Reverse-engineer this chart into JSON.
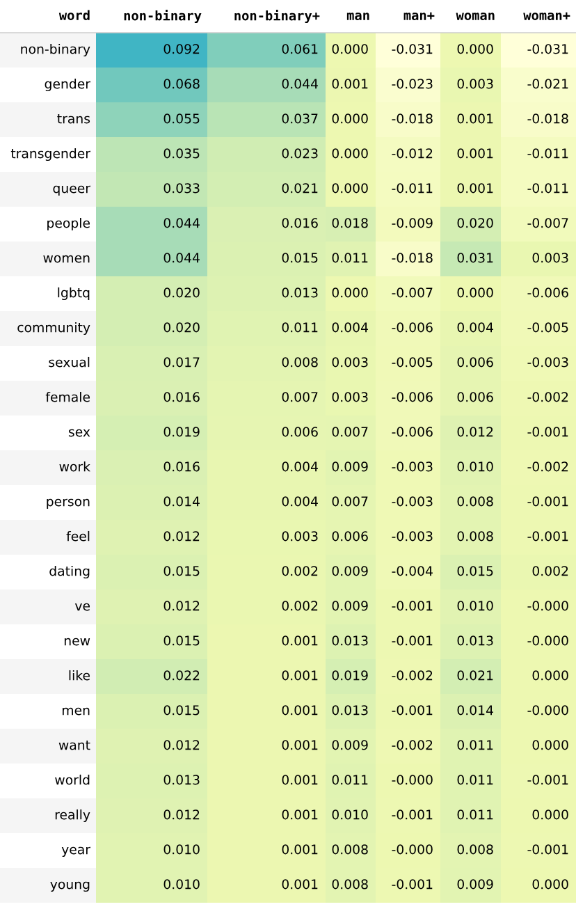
{
  "chart_data": {
    "type": "heatmap",
    "ylabel": "word",
    "categories": [
      "non-binary",
      "non-binary+",
      "man",
      "man+",
      "woman",
      "woman+"
    ],
    "y_categories": [
      "non-binary",
      "gender",
      "trans",
      "transgender",
      "queer",
      "people",
      "women",
      "lgbtq",
      "community",
      "sexual",
      "female",
      "sex",
      "work",
      "person",
      "feel",
      "dating",
      "ve",
      "new",
      "like",
      "men",
      "want",
      "world",
      "really",
      "year",
      "young"
    ],
    "cells": [
      [
        0.092,
        0.061,
        0.0,
        -0.031,
        0.0,
        -0.031
      ],
      [
        0.068,
        0.044,
        0.001,
        -0.023,
        0.003,
        -0.021
      ],
      [
        0.055,
        0.037,
        0.0,
        -0.018,
        0.001,
        -0.018
      ],
      [
        0.035,
        0.023,
        0.0,
        -0.012,
        0.001,
        -0.011
      ],
      [
        0.033,
        0.021,
        0.0,
        -0.011,
        0.001,
        -0.011
      ],
      [
        0.044,
        0.016,
        0.018,
        -0.009,
        0.02,
        -0.007
      ],
      [
        0.044,
        0.015,
        0.011,
        -0.018,
        0.031,
        0.003
      ],
      [
        0.02,
        0.013,
        0.0,
        -0.007,
        0.0,
        -0.006
      ],
      [
        0.02,
        0.011,
        0.004,
        -0.006,
        0.004,
        -0.005
      ],
      [
        0.017,
        0.008,
        0.003,
        -0.005,
        0.006,
        -0.003
      ],
      [
        0.016,
        0.007,
        0.003,
        -0.006,
        0.006,
        -0.002
      ],
      [
        0.019,
        0.006,
        0.007,
        -0.006,
        0.012,
        -0.001
      ],
      [
        0.016,
        0.004,
        0.009,
        -0.003,
        0.01,
        -0.002
      ],
      [
        0.014,
        0.004,
        0.007,
        -0.003,
        0.008,
        -0.001
      ],
      [
        0.012,
        0.003,
        0.006,
        -0.003,
        0.008,
        -0.001
      ],
      [
        0.015,
        0.002,
        0.009,
        -0.004,
        0.015,
        0.002
      ],
      [
        0.012,
        0.002,
        0.009,
        -0.001,
        0.01,
        0.0
      ],
      [
        0.015,
        0.001,
        0.013,
        -0.001,
        0.013,
        0.0
      ],
      [
        0.022,
        0.001,
        0.019,
        -0.002,
        0.021,
        0.0
      ],
      [
        0.015,
        0.001,
        0.013,
        -0.001,
        0.014,
        0.0
      ],
      [
        0.012,
        0.001,
        0.009,
        -0.002,
        0.011,
        0.0
      ],
      [
        0.013,
        0.001,
        0.011,
        0.0,
        0.011,
        -0.001
      ],
      [
        0.012,
        0.001,
        0.01,
        -0.001,
        0.011,
        0.0
      ],
      [
        0.01,
        0.001,
        0.008,
        0.0,
        0.008,
        -0.001
      ],
      [
        0.01,
        0.001,
        0.008,
        -0.001,
        0.009,
        0.0
      ]
    ],
    "cell_labels": [
      [
        "0.092",
        "0.061",
        "0.000",
        "-0.031",
        "0.000",
        "-0.031"
      ],
      [
        "0.068",
        "0.044",
        "0.001",
        "-0.023",
        "0.003",
        "-0.021"
      ],
      [
        "0.055",
        "0.037",
        "0.000",
        "-0.018",
        "0.001",
        "-0.018"
      ],
      [
        "0.035",
        "0.023",
        "0.000",
        "-0.012",
        "0.001",
        "-0.011"
      ],
      [
        "0.033",
        "0.021",
        "0.000",
        "-0.011",
        "0.001",
        "-0.011"
      ],
      [
        "0.044",
        "0.016",
        "0.018",
        "-0.009",
        "0.020",
        "-0.007"
      ],
      [
        "0.044",
        "0.015",
        "0.011",
        "-0.018",
        "0.031",
        "0.003"
      ],
      [
        "0.020",
        "0.013",
        "0.000",
        "-0.007",
        "0.000",
        "-0.006"
      ],
      [
        "0.020",
        "0.011",
        "0.004",
        "-0.006",
        "0.004",
        "-0.005"
      ],
      [
        "0.017",
        "0.008",
        "0.003",
        "-0.005",
        "0.006",
        "-0.003"
      ],
      [
        "0.016",
        "0.007",
        "0.003",
        "-0.006",
        "0.006",
        "-0.002"
      ],
      [
        "0.019",
        "0.006",
        "0.007",
        "-0.006",
        "0.012",
        "-0.001"
      ],
      [
        "0.016",
        "0.004",
        "0.009",
        "-0.003",
        "0.010",
        "-0.002"
      ],
      [
        "0.014",
        "0.004",
        "0.007",
        "-0.003",
        "0.008",
        "-0.001"
      ],
      [
        "0.012",
        "0.003",
        "0.006",
        "-0.003",
        "0.008",
        "-0.001"
      ],
      [
        "0.015",
        "0.002",
        "0.009",
        "-0.004",
        "0.015",
        "0.002"
      ],
      [
        "0.012",
        "0.002",
        "0.009",
        "-0.001",
        "0.010",
        "-0.000"
      ],
      [
        "0.015",
        "0.001",
        "0.013",
        "-0.001",
        "0.013",
        "-0.000"
      ],
      [
        "0.022",
        "0.001",
        "0.019",
        "-0.002",
        "0.021",
        "0.000"
      ],
      [
        "0.015",
        "0.001",
        "0.013",
        "-0.001",
        "0.014",
        "-0.000"
      ],
      [
        "0.012",
        "0.001",
        "0.009",
        "-0.002",
        "0.011",
        "0.000"
      ],
      [
        "0.013",
        "0.001",
        "0.011",
        "-0.000",
        "0.011",
        "-0.001"
      ],
      [
        "0.012",
        "0.001",
        "0.010",
        "-0.001",
        "0.011",
        "0.000"
      ],
      [
        "0.010",
        "0.001",
        "0.008",
        "-0.000",
        "0.008",
        "-0.001"
      ],
      [
        "0.010",
        "0.001",
        "0.008",
        "-0.001",
        "0.009",
        "0.000"
      ]
    ]
  }
}
